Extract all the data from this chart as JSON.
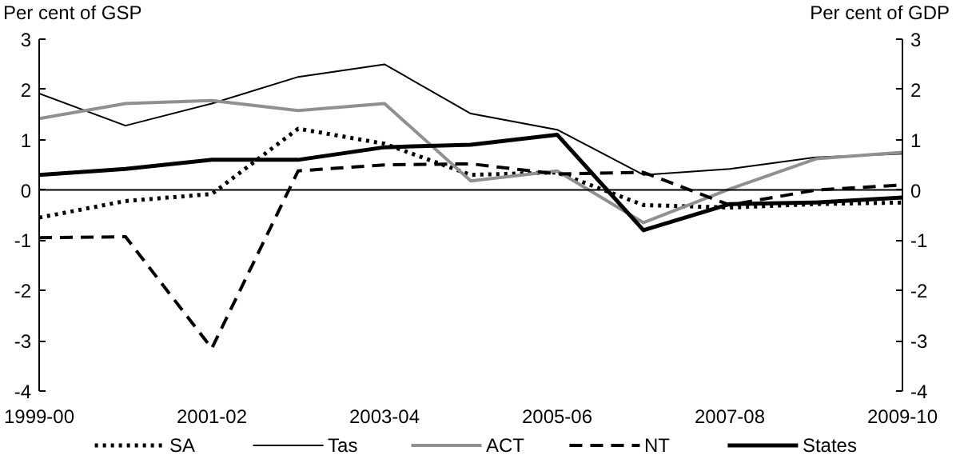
{
  "chart_data": {
    "type": "line",
    "ylabel": "Per cent of GSP",
    "y2label": "Per cent of GDP",
    "categories": [
      "1999-00",
      null,
      "2001-02",
      null,
      "2003-04",
      null,
      "2005-06",
      null,
      "2007-08",
      null,
      "2009-10"
    ],
    "series": [
      {
        "name": "SA",
        "color": "#000000",
        "line_style": "dotted",
        "values": [
          -0.55,
          -0.22,
          -0.08,
          1.22,
          0.92,
          0.3,
          0.35,
          -0.3,
          -0.35,
          -0.28,
          -0.25
        ]
      },
      {
        "name": "Tas",
        "color": "#000000",
        "line_style": "solid",
        "values": [
          1.92,
          1.28,
          1.72,
          2.25,
          2.5,
          1.52,
          1.2,
          0.3,
          0.42,
          0.65,
          0.72
        ]
      },
      {
        "name": "ACT",
        "color": "#909090",
        "line_style": "solid",
        "values": [
          1.42,
          1.72,
          1.78,
          1.58,
          1.72,
          0.18,
          0.38,
          -0.65,
          0.02,
          0.62,
          0.75
        ]
      },
      {
        "name": "NT",
        "color": "#000000",
        "line_style": "dashed",
        "values": [
          -0.95,
          -0.93,
          -3.15,
          0.38,
          0.5,
          0.52,
          0.32,
          0.35,
          -0.3,
          0.0,
          0.1
        ]
      },
      {
        "name": "States",
        "color": "#000000",
        "line_style": "solid",
        "values": [
          0.3,
          0.42,
          0.6,
          0.6,
          0.85,
          0.9,
          1.1,
          -0.8,
          -0.28,
          -0.25,
          -0.15
        ]
      }
    ],
    "ylim": [
      -4,
      3
    ],
    "yticks": [
      -4,
      -3,
      -2,
      -1,
      0,
      1,
      2,
      3
    ],
    "y2lim": [
      -4,
      3
    ],
    "y2ticks": [
      -4,
      -3,
      -2,
      -1,
      0,
      1,
      2,
      3
    ],
    "ref_lines": [
      {
        "axis": "y",
        "value": 0,
        "color": "#000000"
      }
    ],
    "grid": false,
    "legend": "bottom",
    "marker": "none"
  }
}
